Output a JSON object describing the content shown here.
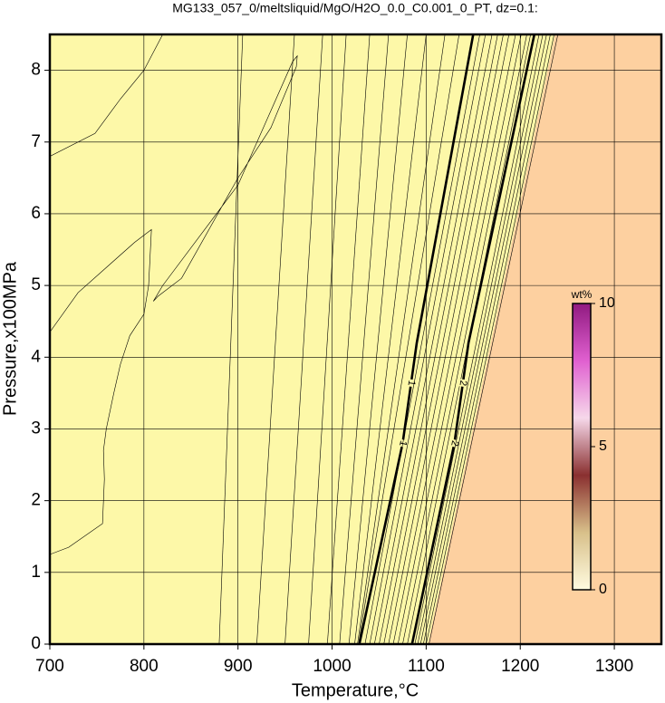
{
  "chart_data": {
    "type": "contour",
    "title": "MG133_057_0/meltsliquid/MgO/H2O_0.0_C0.001_0_PT, dz=0.1:",
    "x_label": "Temperature,°C",
    "y_label": "Pressure,x100MPa",
    "xlim": [
      700,
      1350
    ],
    "ylim": [
      0,
      8.5
    ],
    "xticks": [
      700,
      800,
      900,
      1000,
      1100,
      1200,
      1300
    ],
    "yticks": [
      0,
      1,
      2,
      3,
      4,
      5,
      6,
      7,
      8
    ],
    "grid": true,
    "background": "#fdf8a8",
    "regions": [
      {
        "color": "#fdd0a0",
        "x": [
          1102,
          1350,
          1350,
          1237
        ],
        "y": [
          0,
          0,
          8.5,
          8.5
        ]
      }
    ],
    "contours": [
      {
        "x": [
          700,
          748,
          775,
          800,
          820
        ],
        "y": [
          6.8,
          7.12,
          7.6,
          8.0,
          8.5
        ]
      },
      {
        "x": [
          700,
          730,
          790,
          808,
          805,
          800,
          785,
          775,
          768,
          760,
          757,
          758,
          756,
          720,
          700
        ],
        "y": [
          4.35,
          4.9,
          5.6,
          5.78,
          5.0,
          4.6,
          4.3,
          3.9,
          3.5,
          3.0,
          2.7,
          2.3,
          1.68,
          1.35,
          1.25
        ]
      },
      {
        "x": [
          810,
          820,
          900,
          958,
          963,
          962,
          935,
          900,
          870,
          840,
          815,
          810
        ],
        "y": [
          4.78,
          5.0,
          6.4,
          8.12,
          8.2,
          8.05,
          7.2,
          6.5,
          5.8,
          5.1,
          4.85,
          4.78
        ]
      },
      {
        "x": [
          880,
          905
        ],
        "y": [
          0,
          8.5
        ]
      },
      {
        "x": [
          920,
          960
        ],
        "y": [
          0,
          8.5
        ]
      },
      {
        "x": [
          950,
          990
        ],
        "y": [
          0,
          8.5
        ]
      },
      {
        "x": [
          975,
          1015
        ],
        "y": [
          0,
          8.5
        ]
      },
      {
        "x": [
          995,
          1040
        ],
        "y": [
          0,
          8.5
        ]
      },
      {
        "x": [
          1008,
          1060
        ],
        "y": [
          0,
          8.5
        ]
      },
      {
        "x": [
          1018,
          1080
        ],
        "y": [
          0,
          8.5
        ]
      },
      {
        "x": [
          1024,
          1100
        ],
        "y": [
          0,
          8.5
        ]
      },
      {
        "x": [
          1027,
          1120
        ],
        "y": [
          0,
          8.5
        ]
      },
      {
        "x": [
          1028,
          1135
        ],
        "y": [
          0,
          8.5
        ]
      },
      {
        "level": 1,
        "x": [
          1029,
          1075,
          1090,
          1150
        ],
        "y": [
          0,
          2.8,
          4.2,
          8.5
        ]
      },
      {
        "x": [
          1035,
          1157
        ],
        "y": [
          0,
          8.5
        ]
      },
      {
        "x": [
          1040,
          1163
        ],
        "y": [
          0,
          8.5
        ]
      },
      {
        "x": [
          1045,
          1170
        ],
        "y": [
          0,
          8.5
        ]
      },
      {
        "x": [
          1050,
          1176
        ],
        "y": [
          0,
          8.5
        ]
      },
      {
        "x": [
          1055,
          1182
        ],
        "y": [
          0,
          8.5
        ]
      },
      {
        "x": [
          1060,
          1188
        ],
        "y": [
          0,
          8.5
        ]
      },
      {
        "x": [
          1065,
          1195
        ],
        "y": [
          0,
          8.5
        ]
      },
      {
        "x": [
          1070,
          1201
        ],
        "y": [
          0,
          8.5
        ]
      },
      {
        "x": [
          1075,
          1207
        ],
        "y": [
          0,
          8.5
        ]
      },
      {
        "x": [
          1080,
          1211
        ],
        "y": [
          0,
          8.5
        ]
      },
      {
        "level": 2,
        "x": [
          1085,
          1130,
          1145,
          1215
        ],
        "y": [
          0,
          2.8,
          4.2,
          8.5
        ]
      },
      {
        "x": [
          1088,
          1220
        ],
        "y": [
          0,
          8.5
        ]
      },
      {
        "x": [
          1091,
          1224
        ],
        "y": [
          0,
          8.5
        ]
      },
      {
        "x": [
          1094,
          1228
        ],
        "y": [
          0,
          8.5
        ]
      },
      {
        "x": [
          1097,
          1232
        ],
        "y": [
          0,
          8.5
        ]
      },
      {
        "x": [
          1100,
          1236
        ],
        "y": [
          0,
          8.5
        ]
      },
      {
        "x": [
          1103,
          1240
        ],
        "y": [
          0,
          8.5
        ]
      }
    ],
    "colorbar": {
      "label": "wt%",
      "lim": [
        0,
        10
      ],
      "ticks": [
        0,
        5,
        10
      ],
      "colors": [
        "#fffbe0",
        "#d8c08a",
        "#8a3030",
        "#f6d8ea",
        "#e060d0",
        "#901a80"
      ]
    }
  }
}
